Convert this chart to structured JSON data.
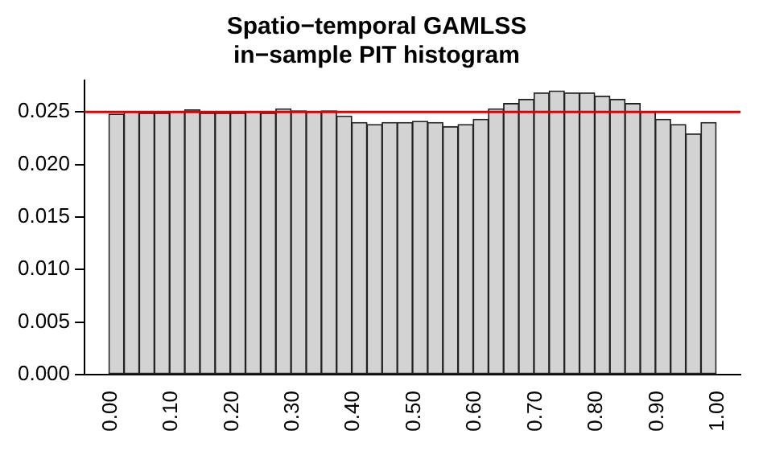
{
  "chart_data": {
    "type": "histogram",
    "title": "Spatio−temporal GAMLSS\nin−sample PIT histogram",
    "bins": [
      0,
      0.025,
      0.05,
      0.075,
      0.1,
      0.125,
      0.15,
      0.175,
      0.2,
      0.225,
      0.25,
      0.275,
      0.3,
      0.325,
      0.35,
      0.375,
      0.4,
      0.425,
      0.45,
      0.475,
      0.5,
      0.525,
      0.55,
      0.575,
      0.6,
      0.625,
      0.65,
      0.675,
      0.7,
      0.725,
      0.75,
      0.775,
      0.8,
      0.825,
      0.85,
      0.875,
      0.9,
      0.925,
      0.95,
      0.975,
      1
    ],
    "values": [
      0.0248,
      0.025,
      0.0249,
      0.0249,
      0.025,
      0.0252,
      0.0249,
      0.0249,
      0.0249,
      0.025,
      0.0249,
      0.0253,
      0.0251,
      0.025,
      0.0251,
      0.0246,
      0.024,
      0.0238,
      0.024,
      0.024,
      0.0241,
      0.024,
      0.0236,
      0.0238,
      0.0243,
      0.0253,
      0.0258,
      0.0262,
      0.0268,
      0.027,
      0.0268,
      0.0268,
      0.0265,
      0.0262,
      0.0258,
      0.025,
      0.0243,
      0.0238,
      0.0229,
      0.024
    ],
    "color": "#d3d3d3",
    "xlim": [
      -0.04,
      1.04
    ],
    "xticks": [
      {
        "value": 0,
        "label": "0.00"
      },
      {
        "value": 0.1,
        "label": "0.10"
      },
      {
        "value": 0.2,
        "label": "0.20"
      },
      {
        "value": 0.3,
        "label": "0.30"
      },
      {
        "value": 0.4,
        "label": "0.40"
      },
      {
        "value": 0.5,
        "label": "0.50"
      },
      {
        "value": 0.6,
        "label": "0.60"
      },
      {
        "value": 0.7,
        "label": "0.70"
      },
      {
        "value": 0.8,
        "label": "0.80"
      },
      {
        "value": 0.9,
        "label": "0.90"
      },
      {
        "value": 1,
        "label": "1.00"
      }
    ],
    "ylim": [
      0,
      0.028
    ],
    "yticks": [
      {
        "value": 0,
        "label": "0.000"
      },
      {
        "value": 0.005,
        "label": "0.005"
      },
      {
        "value": 0.01,
        "label": "0.010"
      },
      {
        "value": 0.015,
        "label": "0.015"
      },
      {
        "value": 0.02,
        "label": "0.020"
      },
      {
        "value": 0.025,
        "label": "0.025"
      }
    ],
    "ref_lines": [
      {
        "axis": "y",
        "value": 0.025,
        "color": "#e00000"
      }
    ],
    "grid": false,
    "legend": false
  }
}
